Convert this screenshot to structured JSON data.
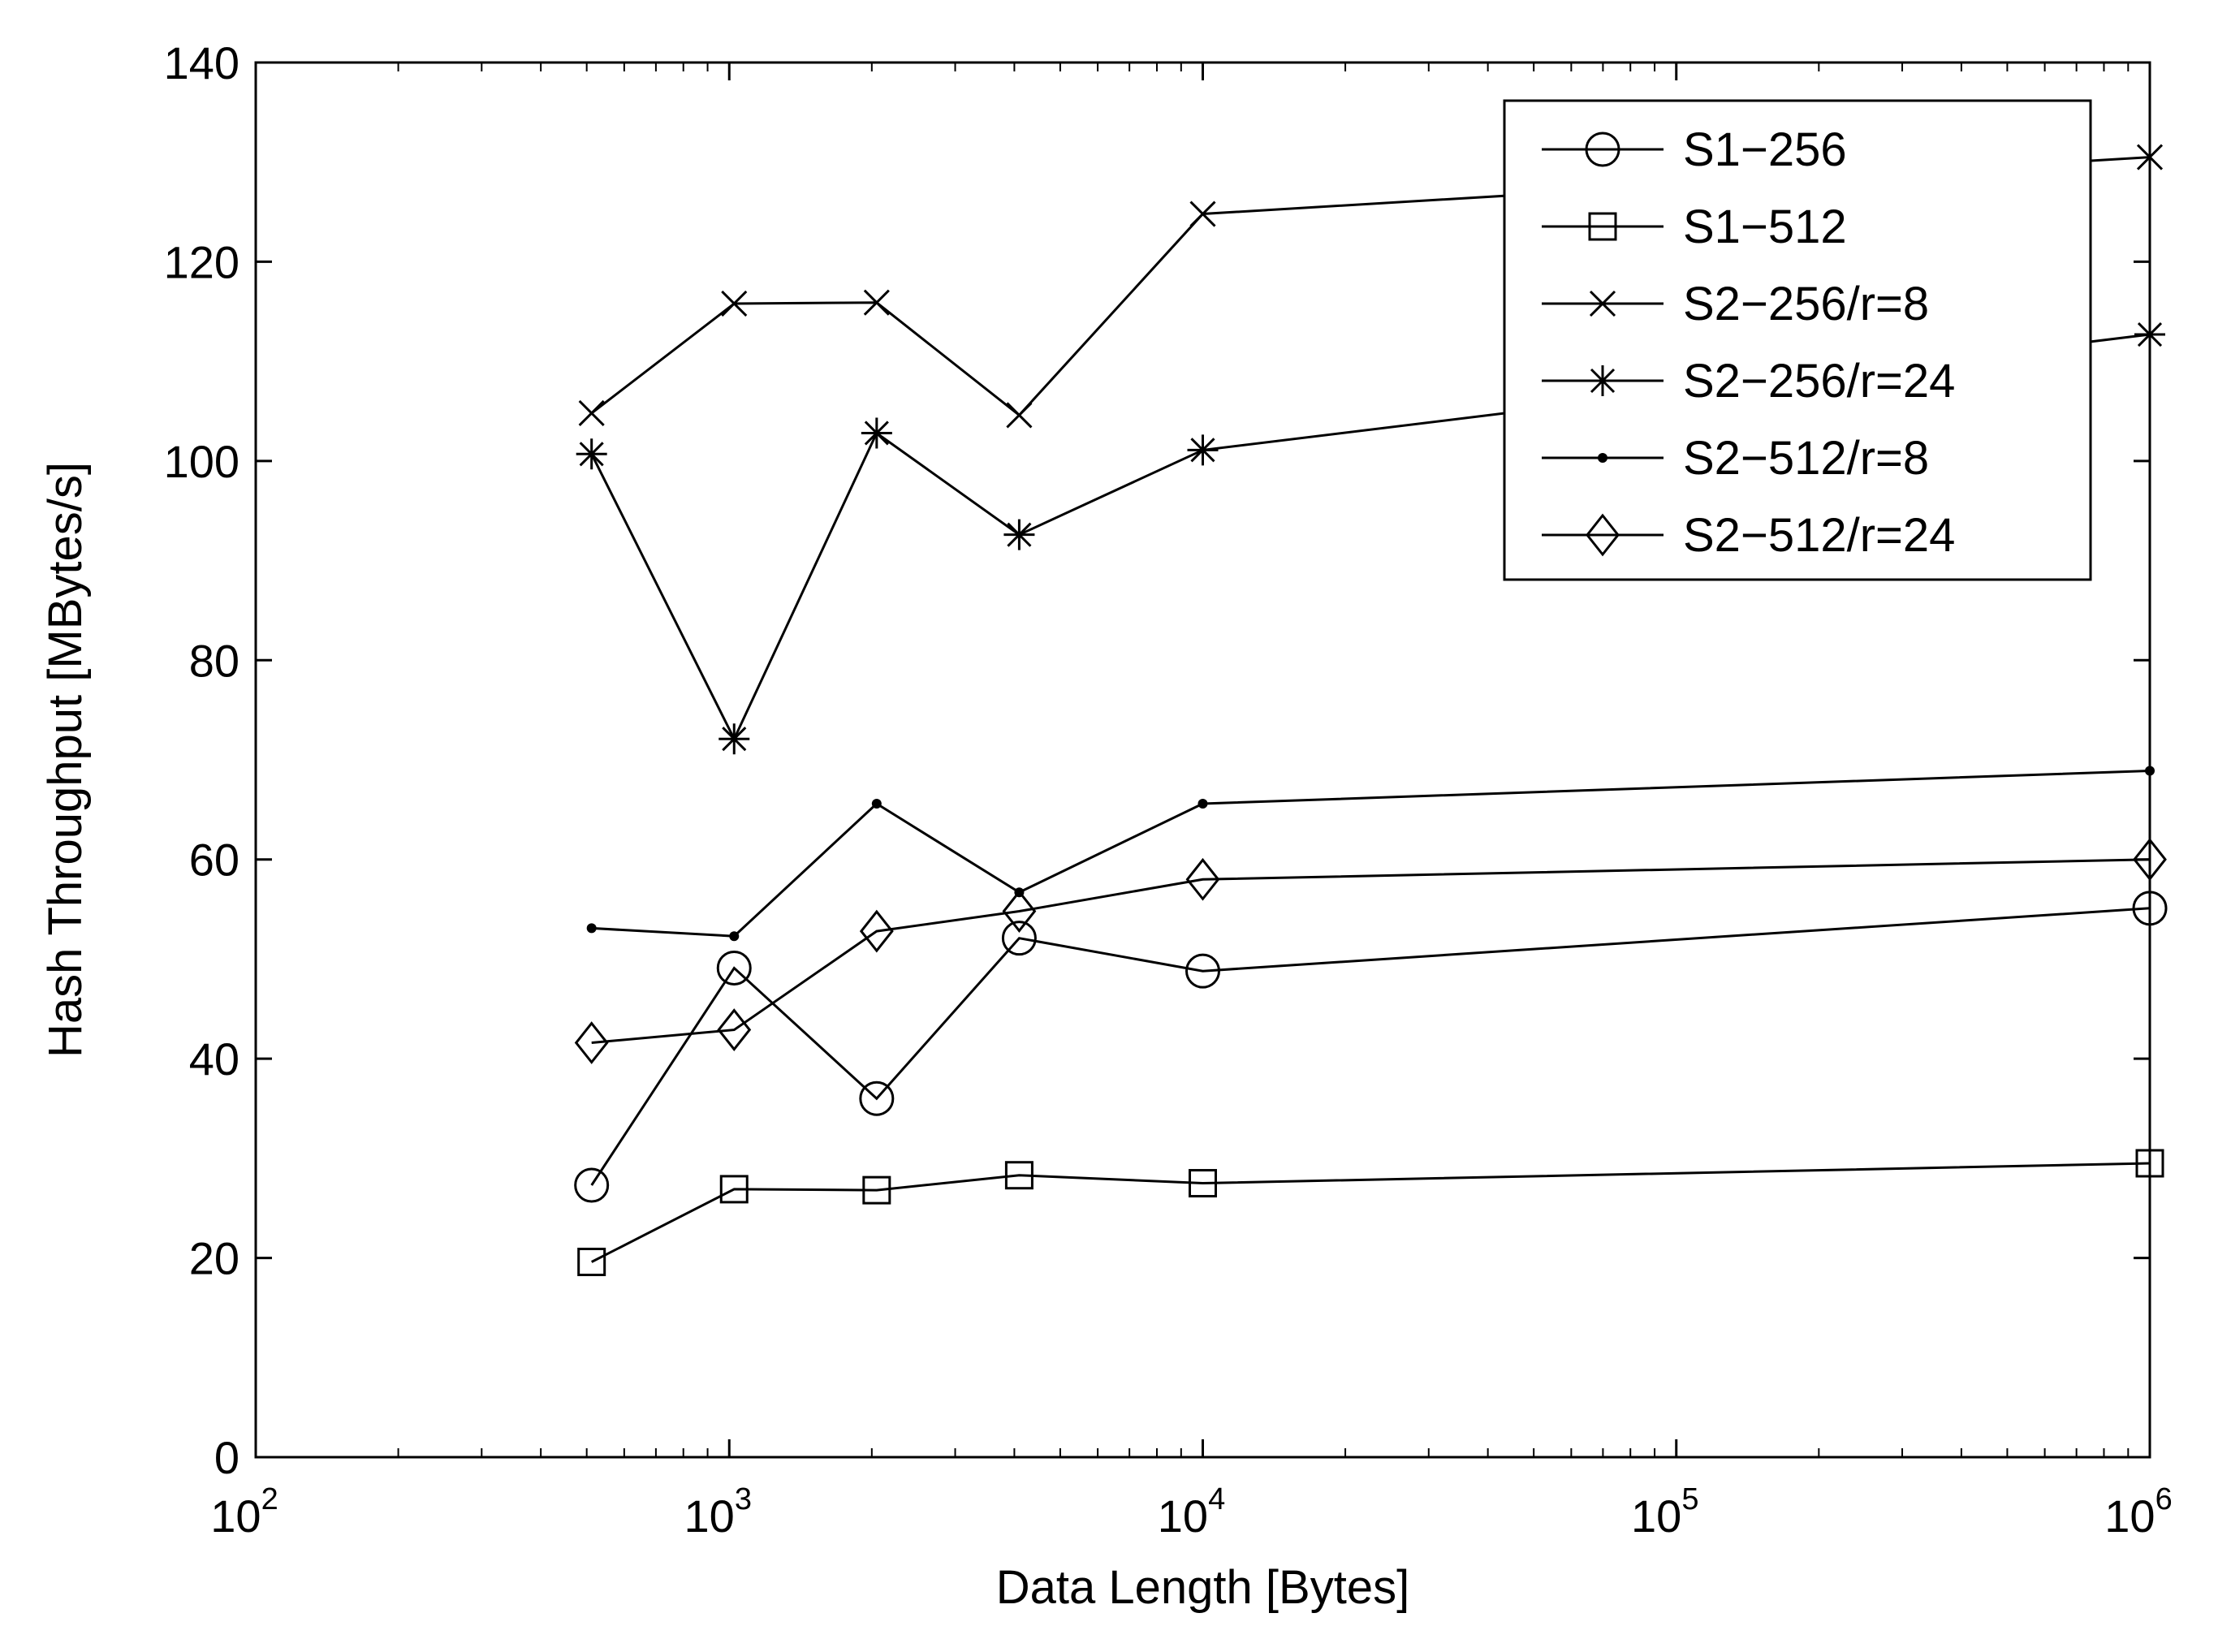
{
  "chart_data": {
    "type": "line",
    "title": "",
    "xlabel": "Data Length [Bytes]",
    "ylabel": "Hash Throughput [MBytes/s]",
    "x_scale": "log",
    "xlim": [
      100,
      1000000
    ],
    "ylim": [
      0,
      140
    ],
    "grid": false,
    "legend_position": "top-right",
    "x_ticks": [
      {
        "value": 100,
        "base": "10",
        "exp": "2"
      },
      {
        "value": 1000,
        "base": "10",
        "exp": "3"
      },
      {
        "value": 10000,
        "base": "10",
        "exp": "4"
      },
      {
        "value": 100000,
        "base": "10",
        "exp": "5"
      },
      {
        "value": 1000000,
        "base": "10",
        "exp": "6"
      }
    ],
    "y_ticks": [
      0,
      20,
      40,
      60,
      80,
      100,
      120,
      140
    ],
    "x": [
      512,
      1024,
      2048,
      4096,
      10000,
      1000000
    ],
    "series": [
      {
        "name": "S1−256",
        "marker": "circle",
        "values": [
          27.3,
          49.1,
          36.0,
          52.1,
          48.8,
          55.1
        ]
      },
      {
        "name": "S1−512",
        "marker": "square",
        "values": [
          19.6,
          26.9,
          26.8,
          28.3,
          27.5,
          29.5
        ]
      },
      {
        "name": "S2−256/r=8",
        "marker": "x",
        "values": [
          104.8,
          115.8,
          115.9,
          104.6,
          124.8,
          130.5
        ]
      },
      {
        "name": "S2−256/r=24",
        "marker": "star",
        "values": [
          100.7,
          72.1,
          102.8,
          92.6,
          101.1,
          112.7
        ]
      },
      {
        "name": "S2−512/r=8",
        "marker": "dot",
        "values": [
          53.1,
          52.3,
          65.6,
          56.7,
          65.6,
          68.9
        ]
      },
      {
        "name": "S2−512/r=24",
        "marker": "diamond",
        "values": [
          41.6,
          42.9,
          52.8,
          54.8,
          58.0,
          60.0
        ]
      }
    ]
  }
}
